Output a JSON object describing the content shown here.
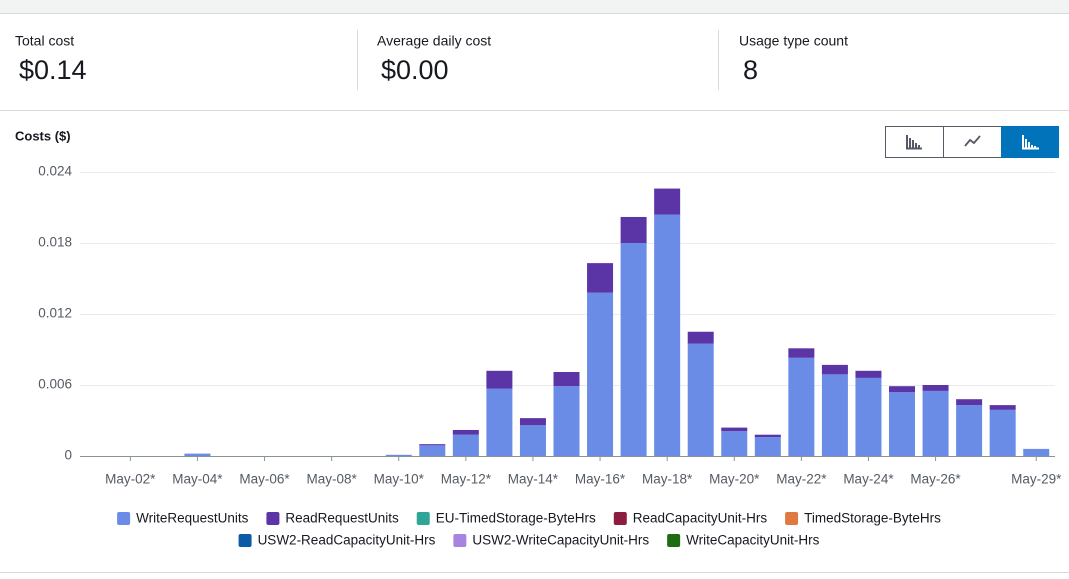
{
  "summary": [
    {
      "label": "Total cost",
      "value": "$0.14"
    },
    {
      "label": "Average daily cost",
      "value": "$0.00"
    },
    {
      "label": "Usage type count",
      "value": "8"
    }
  ],
  "chart_data": {
    "type": "stacked_bar",
    "y_label": "Costs ($)",
    "categories": [
      null,
      "May-02*",
      null,
      "May-04*",
      null,
      "May-06*",
      null,
      "May-08*",
      null,
      "May-10*",
      null,
      "May-12*",
      null,
      "May-14*",
      null,
      "May-16*",
      null,
      "May-18*",
      null,
      "May-20*",
      null,
      "May-22*",
      null,
      "May-24*",
      null,
      "May-26*",
      null,
      null,
      "May-29*"
    ],
    "ylim": [
      0,
      0.024
    ],
    "yticks": [
      0,
      0.006,
      0.012,
      0.018,
      0.024
    ],
    "grid": true,
    "series": [
      {
        "name": "WriteRequestUnits",
        "color": "#6a8be6",
        "values": [
          0,
          0,
          0,
          0.0002,
          0,
          0,
          0,
          0,
          0,
          0.0001,
          0.0009,
          0.0018,
          0.0057,
          0.0026,
          0.0059,
          0.0138,
          0.018,
          0.0204,
          0.0095,
          0.0021,
          0.0016,
          0.0083,
          0.0069,
          0.0066,
          0.0054,
          0.0055,
          0.0043,
          0.0039,
          0.0006
        ]
      },
      {
        "name": "ReadRequestUnits",
        "color": "#5b34a6",
        "values": [
          0,
          0,
          0,
          0,
          0,
          0,
          0,
          0,
          0,
          0,
          0.0001,
          0.0004,
          0.0015,
          0.0006,
          0.0012,
          0.0025,
          0.0022,
          0.0022,
          0.001,
          0.0003,
          0.0002,
          0.0008,
          0.0008,
          0.0006,
          0.0005,
          0.0005,
          0.0005,
          0.0004,
          0
        ]
      },
      {
        "name": "EU-TimedStorage-ByteHrs",
        "color": "#2ea597",
        "values": [
          0,
          0,
          0,
          0,
          0,
          0,
          0,
          0,
          0,
          0,
          0,
          0,
          0,
          0,
          0,
          0,
          0,
          0,
          0,
          0,
          0,
          0,
          0,
          0,
          0,
          0,
          0,
          0,
          0
        ]
      },
      {
        "name": "ReadCapacityUnit-Hrs",
        "color": "#8c1d40",
        "values": [
          0,
          0,
          0,
          0,
          0,
          0,
          0,
          0,
          0,
          0,
          0,
          0,
          0,
          0,
          0,
          0,
          0,
          0,
          0,
          0,
          0,
          0,
          0,
          0,
          0,
          0,
          0,
          0,
          0
        ]
      },
      {
        "name": "TimedStorage-ByteHrs",
        "color": "#e07941",
        "values": [
          0,
          0,
          0,
          0,
          0,
          0,
          0,
          0,
          0,
          0,
          0,
          0,
          0,
          0,
          0,
          0,
          0,
          0,
          0,
          0,
          0,
          0,
          0,
          0,
          0,
          0,
          0,
          0,
          0
        ]
      },
      {
        "name": "USW2-ReadCapacityUnit-Hrs",
        "color": "#0d5aa5",
        "values": [
          0,
          0,
          0,
          0,
          0,
          0,
          0,
          0,
          0,
          0,
          0,
          0,
          0,
          0,
          0,
          0,
          0,
          0,
          0,
          0,
          0,
          0,
          0,
          0,
          0,
          0,
          0,
          0,
          0
        ]
      },
      {
        "name": "USW2-WriteCapacityUnit-Hrs",
        "color": "#a784e0",
        "values": [
          0,
          0,
          0,
          0,
          0,
          0,
          0,
          0,
          0,
          0,
          0,
          0,
          0,
          0,
          0,
          0,
          0,
          0,
          0,
          0,
          0,
          0,
          0,
          0,
          0,
          0,
          0,
          0,
          0
        ]
      },
      {
        "name": "WriteCapacityUnit-Hrs",
        "color": "#1e6b14",
        "values": [
          0,
          0,
          0,
          0,
          0,
          0,
          0,
          0,
          0,
          0,
          0,
          0,
          0,
          0,
          0,
          0,
          0,
          0,
          0,
          0,
          0,
          0,
          0,
          0,
          0,
          0,
          0,
          0,
          0
        ]
      }
    ]
  }
}
